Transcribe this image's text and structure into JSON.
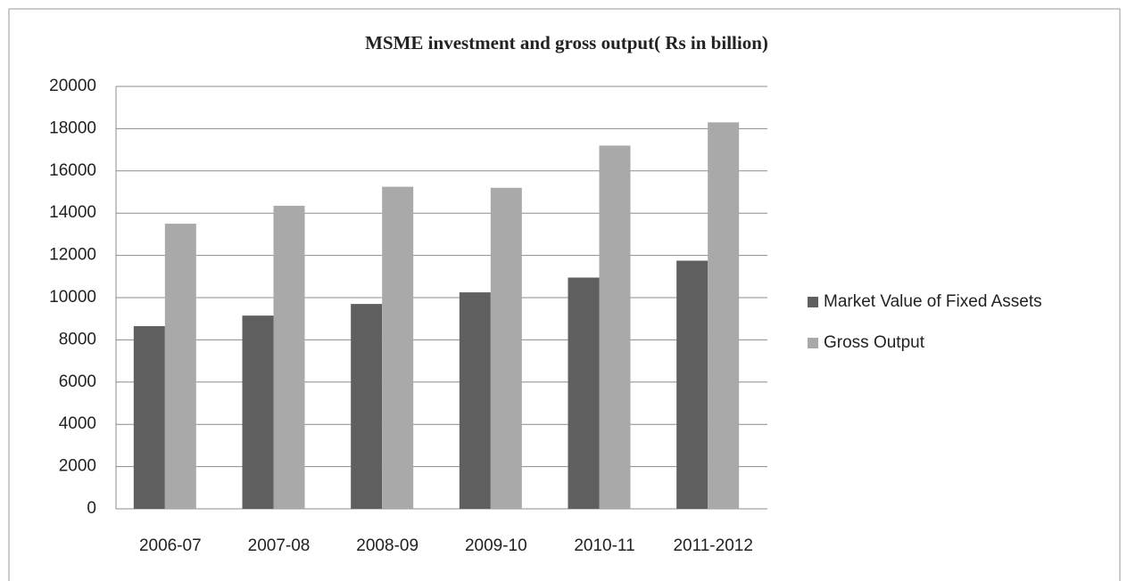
{
  "chart_data": {
    "type": "bar",
    "title": "MSME investment and gross output( Rs in billion)",
    "categories": [
      "2006-07",
      "2007-08",
      "2008-09",
      "2009-10",
      "2010-11",
      "2011-2012"
    ],
    "series": [
      {
        "name": "Market Value of Fixed Assets",
        "color": "#5f5f5f",
        "values": [
          8650,
          9150,
          9700,
          10250,
          10950,
          11750
        ]
      },
      {
        "name": "Gross Output",
        "color": "#a9a9a9",
        "values": [
          13500,
          14350,
          15250,
          15200,
          17200,
          18300
        ]
      }
    ],
    "ylim": [
      0,
      20000
    ],
    "yticks": [
      0,
      2000,
      4000,
      6000,
      8000,
      10000,
      12000,
      14000,
      16000,
      18000,
      20000
    ],
    "grid": true,
    "legend": "right"
  }
}
